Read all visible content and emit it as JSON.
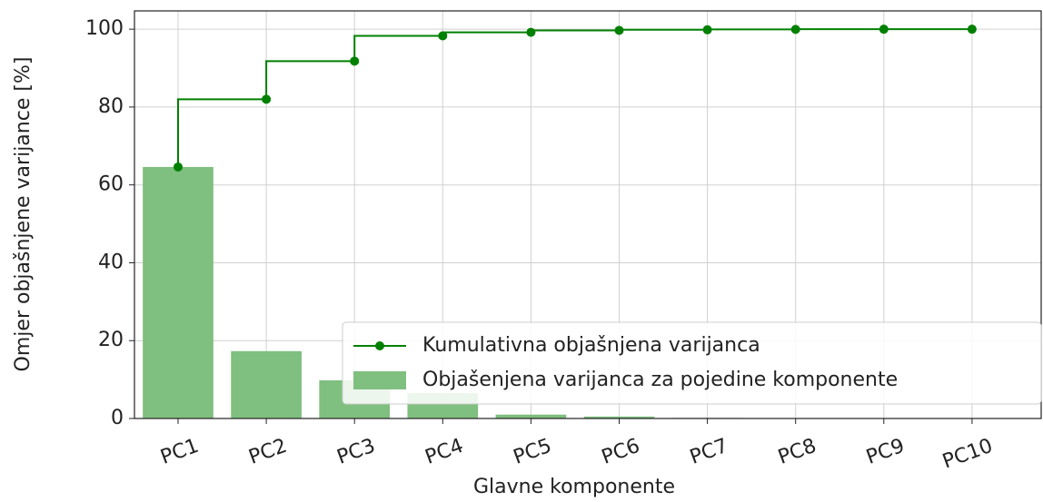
{
  "chart_data": {
    "type": "bar",
    "xlabel": "Glavne komponente",
    "ylabel": "Omjer objašnjene varijance [%]",
    "categories": [
      "PC1",
      "PC2",
      "PC3",
      "PC4",
      "PC5",
      "PC6",
      "PC7",
      "PC8",
      "PC9",
      "PC10"
    ],
    "series": [
      {
        "name": "Kumulativna objašnjena varijanca",
        "kind": "line",
        "color": "#008000",
        "values": [
          64.6,
          82.0,
          91.8,
          98.3,
          99.2,
          99.7,
          99.85,
          99.95,
          100,
          100
        ]
      },
      {
        "name": "Objašenjena varijanca za pojedine komponente",
        "kind": "bar",
        "color": "#7fbf7f",
        "values": [
          64.6,
          17.3,
          9.8,
          6.5,
          1.0,
          0.5,
          0.15,
          0.1,
          0.05,
          0.03
        ]
      }
    ],
    "ylim": [
      0,
      104.7
    ],
    "yticks": [
      0,
      20,
      40,
      60,
      80,
      100
    ],
    "grid": true,
    "legend": "lower right"
  }
}
